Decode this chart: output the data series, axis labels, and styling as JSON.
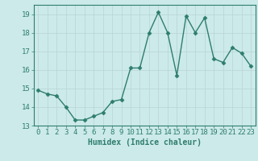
{
  "xlabel": "Humidex (Indice chaleur)",
  "x_values": [
    0,
    1,
    2,
    3,
    4,
    5,
    6,
    7,
    8,
    9,
    10,
    11,
    12,
    13,
    14,
    15,
    16,
    17,
    18,
    19,
    20,
    21,
    22,
    23
  ],
  "y_values": [
    14.9,
    14.7,
    14.6,
    14.0,
    13.3,
    13.3,
    13.5,
    13.7,
    14.3,
    14.4,
    16.1,
    16.1,
    18.0,
    19.1,
    18.0,
    15.7,
    18.9,
    18.0,
    18.8,
    16.6,
    16.4,
    17.2,
    16.9,
    16.2
  ],
  "line_color": "#2e7d6e",
  "marker": "D",
  "marker_size": 2.5,
  "line_width": 1.0,
  "bg_color": "#cceaea",
  "grid_color": "#b8d4d4",
  "tick_color": "#2e7d6e",
  "label_color": "#2e7d6e",
  "ylim": [
    13,
    19.5
  ],
  "yticks": [
    13,
    14,
    15,
    16,
    17,
    18,
    19
  ],
  "xlim": [
    -0.5,
    23.5
  ],
  "xlabel_fontsize": 7,
  "tick_fontsize": 6.5
}
